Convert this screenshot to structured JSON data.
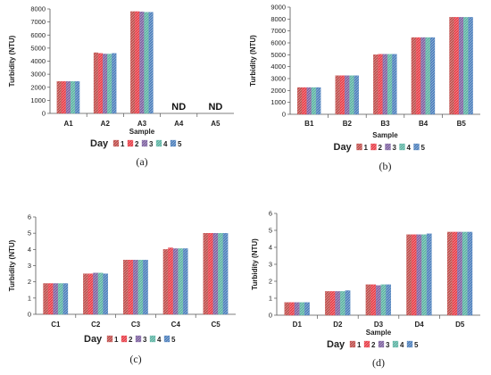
{
  "series_names": [
    "1",
    "2",
    "3",
    "4",
    "5"
  ],
  "series_colors": [
    "#c0504d",
    "#e8404a",
    "#8064a2",
    "#5fb5a5",
    "#4f81bd"
  ],
  "chart_data": [
    {
      "type": "bar",
      "panel_label": "(a)",
      "categories": [
        "A1",
        "A2",
        "A3",
        "A4",
        "A5"
      ],
      "series": [
        {
          "name": "1",
          "values": [
            2450,
            4650,
            7800,
            0,
            0
          ]
        },
        {
          "name": "2",
          "values": [
            2450,
            4600,
            7800,
            0,
            0
          ]
        },
        {
          "name": "3",
          "values": [
            2450,
            4550,
            7780,
            0,
            0
          ]
        },
        {
          "name": "4",
          "values": [
            2450,
            4550,
            7750,
            0,
            0
          ]
        },
        {
          "name": "5",
          "values": [
            2450,
            4600,
            7750,
            0,
            0
          ]
        }
      ],
      "annotations": [
        {
          "category": "A4",
          "text": "ND"
        },
        {
          "category": "A5",
          "text": "ND"
        }
      ],
      "xlabel": "Sample",
      "ylabel": "Turbidity (NTU)",
      "ylim": [
        0,
        8000
      ],
      "yticks": [
        0,
        1000,
        2000,
        3000,
        4000,
        5000,
        6000,
        7000,
        8000
      ],
      "legend_title": "Day",
      "legend_position": "bottom"
    },
    {
      "type": "bar",
      "panel_label": "(b)",
      "categories": [
        "B1",
        "B2",
        "B3",
        "B4",
        "B5"
      ],
      "series": [
        {
          "name": "1",
          "values": [
            2250,
            3250,
            5000,
            6450,
            8150
          ]
        },
        {
          "name": "2",
          "values": [
            2250,
            3250,
            5050,
            6450,
            8150
          ]
        },
        {
          "name": "3",
          "values": [
            2250,
            3250,
            5050,
            6450,
            8150
          ]
        },
        {
          "name": "4",
          "values": [
            2250,
            3250,
            5050,
            6450,
            8150
          ]
        },
        {
          "name": "5",
          "values": [
            2250,
            3250,
            5050,
            6450,
            8150
          ]
        }
      ],
      "annotations": [],
      "xlabel": "Sample",
      "ylabel": "Turbidity (NTU)",
      "ylim": [
        0,
        9000
      ],
      "yticks": [
        0,
        1000,
        2000,
        3000,
        4000,
        5000,
        6000,
        7000,
        8000,
        9000
      ],
      "legend_title": "Day",
      "legend_position": "bottom"
    },
    {
      "type": "bar",
      "panel_label": "(c)",
      "categories": [
        "C1",
        "C2",
        "C3",
        "C4",
        "C5"
      ],
      "series": [
        {
          "name": "1",
          "values": [
            1.9,
            2.5,
            3.35,
            4.0,
            5.0
          ]
        },
        {
          "name": "2",
          "values": [
            1.9,
            2.5,
            3.35,
            4.1,
            5.0
          ]
        },
        {
          "name": "3",
          "values": [
            1.9,
            2.55,
            3.35,
            4.05,
            5.0
          ]
        },
        {
          "name": "4",
          "values": [
            1.9,
            2.55,
            3.35,
            4.05,
            5.0
          ]
        },
        {
          "name": "5",
          "values": [
            1.9,
            2.5,
            3.35,
            4.05,
            5.0
          ]
        }
      ],
      "annotations": [],
      "xlabel": "",
      "ylabel": "Turbidity (NTU)",
      "ylim": [
        0,
        6
      ],
      "yticks": [
        0,
        1,
        2,
        3,
        4,
        5,
        6
      ],
      "legend_title": "Day",
      "legend_position": "bottom"
    },
    {
      "type": "bar",
      "panel_label": "(d)",
      "categories": [
        "D1",
        "D2",
        "D3",
        "D4",
        "D5"
      ],
      "series": [
        {
          "name": "1",
          "values": [
            0.75,
            1.4,
            1.8,
            4.75,
            4.9
          ]
        },
        {
          "name": "2",
          "values": [
            0.75,
            1.4,
            1.8,
            4.75,
            4.9
          ]
        },
        {
          "name": "3",
          "values": [
            0.75,
            1.4,
            1.75,
            4.75,
            4.9
          ]
        },
        {
          "name": "4",
          "values": [
            0.75,
            1.4,
            1.8,
            4.75,
            4.9
          ]
        },
        {
          "name": "5",
          "values": [
            0.75,
            1.45,
            1.8,
            4.8,
            4.9
          ]
        }
      ],
      "annotations": [],
      "xlabel": "Sample",
      "ylabel": "Turbidity (NTU)",
      "ylim": [
        0,
        6
      ],
      "yticks": [
        0,
        1,
        2,
        3,
        4,
        5,
        6
      ],
      "legend_title": "Day",
      "legend_position": "bottom"
    }
  ]
}
